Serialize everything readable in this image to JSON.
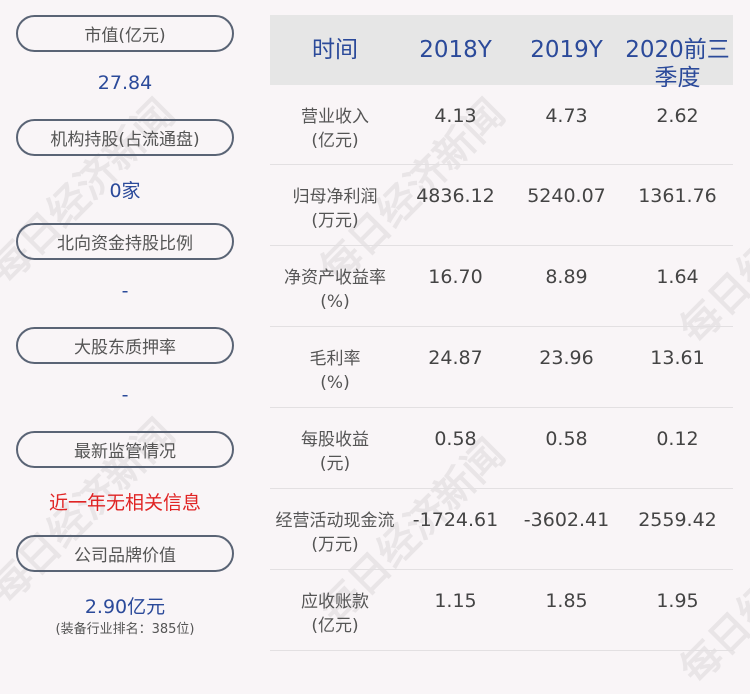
{
  "watermark": "每日经济新闻",
  "left": [
    {
      "label": "市值(亿元)",
      "value": "27.84"
    },
    {
      "label": "机构持股(占流通盘)",
      "value": "0家"
    },
    {
      "label": "北向资金持股比例",
      "value": "-"
    },
    {
      "label": "大股东质押率",
      "value": "-"
    },
    {
      "label": "最新监管情况",
      "value": "近一年无相关信息"
    },
    {
      "label": "公司品牌价值",
      "value": "2.90亿元",
      "note": "(装备行业排名：385位)"
    }
  ],
  "colors": {
    "accent": "#2b4a9a",
    "alert": "#e02424",
    "header_bg": "#e6e6e6"
  },
  "table": {
    "headers": [
      "时间",
      "2018Y",
      "2019Y",
      "2020前三季度"
    ],
    "rows": [
      {
        "label": "营业收入",
        "unit": "(亿元)",
        "values": [
          "4.13",
          "4.73",
          "2.62"
        ]
      },
      {
        "label": "归母净利润",
        "unit": "(万元)",
        "values": [
          "4836.12",
          "5240.07",
          "1361.76"
        ]
      },
      {
        "label": "净资产收益率",
        "unit": "(%)",
        "values": [
          "16.70",
          "8.89",
          "1.64"
        ]
      },
      {
        "label": "毛利率",
        "unit": "(%)",
        "values": [
          "24.87",
          "23.96",
          "13.61"
        ]
      },
      {
        "label": "每股收益",
        "unit": "(元)",
        "values": [
          "0.58",
          "0.58",
          "0.12"
        ]
      },
      {
        "label": "经营活动现金流",
        "unit": "(万元)",
        "values": [
          "-1724.61",
          "-3602.41",
          "2559.42"
        ]
      },
      {
        "label": "应收账款",
        "unit": "(亿元)",
        "values": [
          "1.15",
          "1.85",
          "1.95"
        ]
      }
    ]
  }
}
